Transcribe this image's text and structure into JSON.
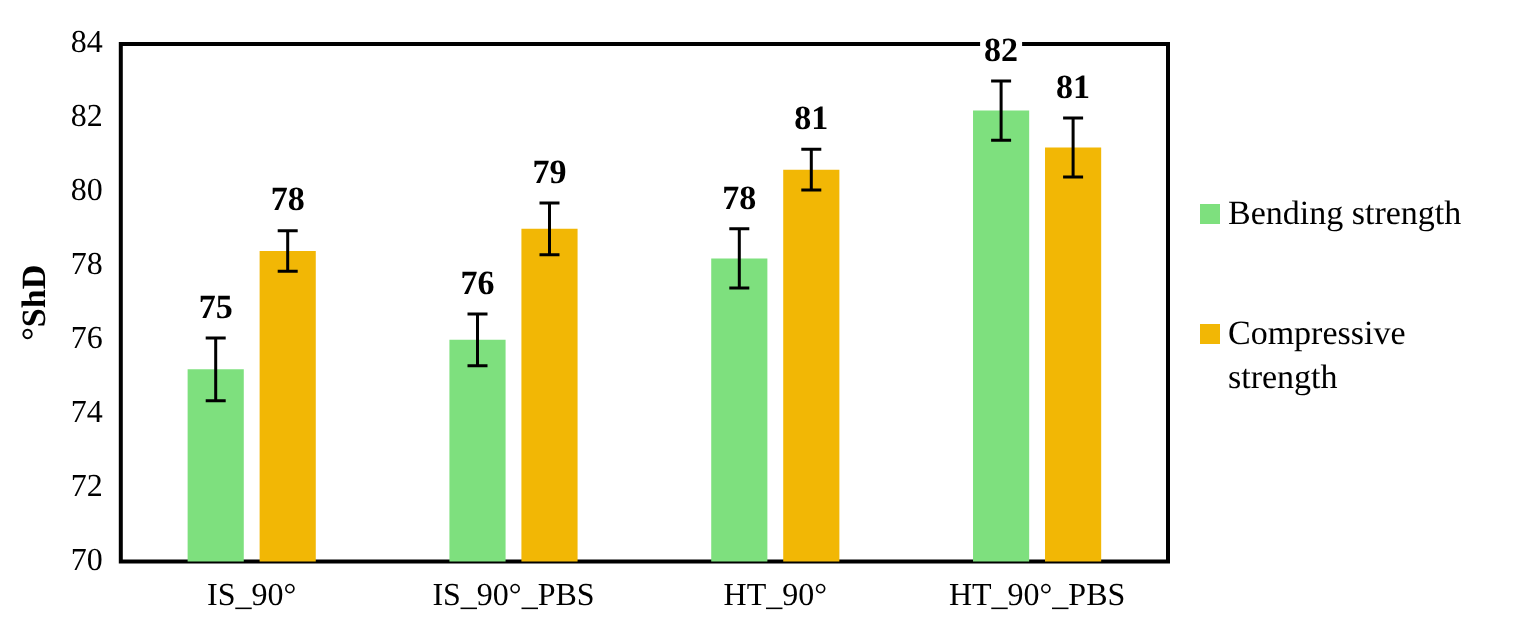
{
  "chart_data": {
    "type": "bar",
    "ylabel": "°ShD",
    "categories": [
      "IS_90°",
      "IS_90°_PBS",
      "HT_90°",
      "HT_90°_PBS"
    ],
    "series": [
      {
        "name": "Bending strength",
        "color": "#7ee07e",
        "values": [
          75.2,
          76.0,
          78.2,
          82.2
        ],
        "errors": [
          0.85,
          0.7,
          0.8,
          0.8
        ],
        "value_labels": [
          "75",
          "76",
          "78",
          "82"
        ]
      },
      {
        "name": "Compressive strength",
        "color": "#f2b705",
        "values": [
          78.4,
          79.0,
          80.6,
          81.2
        ],
        "errors": [
          0.55,
          0.7,
          0.55,
          0.8
        ],
        "value_labels": [
          "78",
          "79",
          "81",
          "81"
        ]
      }
    ],
    "ylim": [
      70,
      84
    ],
    "yticks": [
      70,
      72,
      74,
      76,
      78,
      80,
      82,
      84
    ],
    "grid": false,
    "legend": "right"
  }
}
